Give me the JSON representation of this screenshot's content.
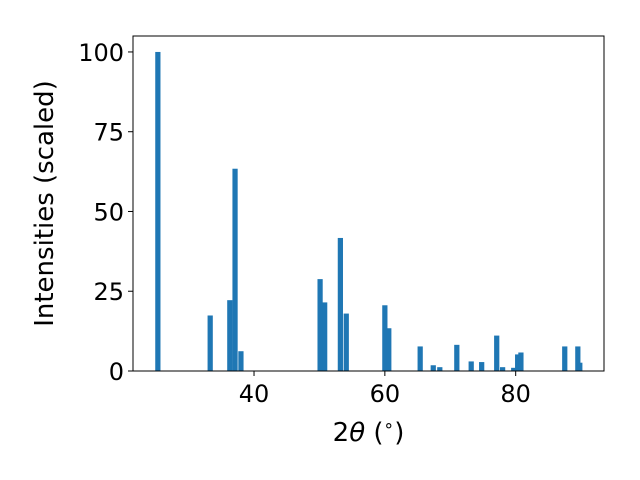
{
  "chart_data": {
    "type": "bar",
    "xlabel_parts": {
      "prefix": "2",
      "theta": "θ",
      "suffix": " (",
      "degree": "∘",
      "close": ")"
    },
    "ylabel": "Intensities (scaled)",
    "xlim": [
      21.5,
      93.5
    ],
    "ylim": [
      0,
      105
    ],
    "bar_width": 0.8,
    "x_ticks": [
      40,
      60,
      80
    ],
    "y_ticks": [
      0,
      25,
      50,
      75,
      100
    ],
    "bar_color": "#1f77b4",
    "x": [
      25.3,
      33.3,
      36.3,
      37.1,
      38.0,
      50.1,
      50.8,
      53.2,
      54.1,
      60.0,
      60.6,
      65.4,
      67.4,
      68.4,
      71.0,
      73.2,
      74.8,
      77.1,
      78.0,
      79.7,
      80.3,
      80.8,
      87.5,
      89.5,
      89.8
    ],
    "values": [
      100,
      17.4,
      22.2,
      63.4,
      6.2,
      28.8,
      21.5,
      41.7,
      18.0,
      20.6,
      13.4,
      7.7,
      1.8,
      1.2,
      8.2,
      3.0,
      2.8,
      11.1,
      1.2,
      1.0,
      5.2,
      5.8,
      7.7,
      7.7,
      2.6
    ]
  }
}
